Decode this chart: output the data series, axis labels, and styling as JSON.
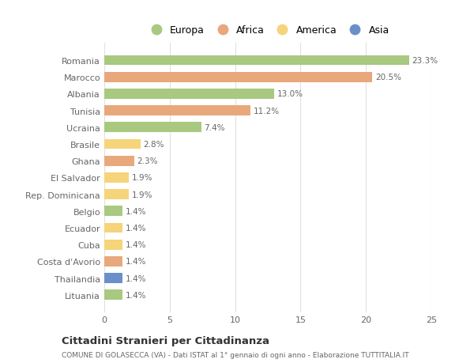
{
  "countries": [
    "Romania",
    "Marocco",
    "Albania",
    "Tunisia",
    "Ucraina",
    "Brasile",
    "Ghana",
    "El Salvador",
    "Rep. Dominicana",
    "Belgio",
    "Ecuador",
    "Cuba",
    "Costa d'Avorio",
    "Thailandia",
    "Lituania"
  ],
  "values": [
    23.3,
    20.5,
    13.0,
    11.2,
    7.4,
    2.8,
    2.3,
    1.9,
    1.9,
    1.4,
    1.4,
    1.4,
    1.4,
    1.4,
    1.4
  ],
  "categories": [
    "Europa",
    "Africa",
    "Europa",
    "Africa",
    "Europa",
    "America",
    "Africa",
    "America",
    "America",
    "Europa",
    "America",
    "America",
    "Africa",
    "Asia",
    "Europa"
  ],
  "category_colors": {
    "Europa": "#a8c97f",
    "Africa": "#e8a87c",
    "America": "#f5d47a",
    "Asia": "#6b8fc9"
  },
  "legend_order": [
    "Europa",
    "Africa",
    "America",
    "Asia"
  ],
  "title": "Cittadini Stranieri per Cittadinanza",
  "subtitle": "COMUNE DI GOLASECCA (VA) - Dati ISTAT al 1° gennaio di ogni anno - Elaborazione TUTTITALIA.IT",
  "xlim": [
    0,
    25
  ],
  "xticks": [
    0,
    5,
    10,
    15,
    20,
    25
  ],
  "bg_color": "#ffffff",
  "grid_color": "#e0e0e0",
  "label_color": "#666666",
  "bar_label_color": "#666666"
}
